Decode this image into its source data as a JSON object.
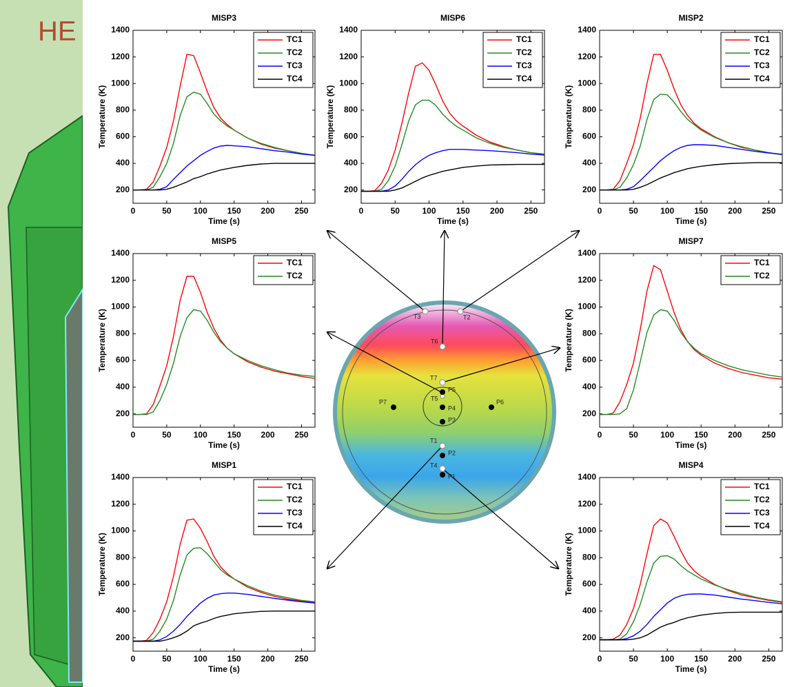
{
  "background_text": "HE",
  "diagram": {
    "points": [
      "T3",
      "T2",
      "T6",
      "T7",
      "T5",
      "P5",
      "P4",
      "P3",
      "P7",
      "P6",
      "T1",
      "P2",
      "T4",
      "P1"
    ]
  },
  "chart_data": [
    {
      "type": "line",
      "title": "MISP3",
      "xlabel": "Time (s)",
      "ylabel": "Temperature (K)",
      "x": [
        0,
        10,
        20,
        30,
        40,
        50,
        60,
        70,
        80,
        90,
        100,
        110,
        120,
        130,
        140,
        150,
        170,
        190,
        210,
        230,
        250,
        270
      ],
      "xlim": [
        0,
        270
      ],
      "xticks": [
        0,
        50,
        100,
        150,
        200,
        250
      ],
      "ylim": [
        100,
        1400
      ],
      "yticks": [
        200,
        400,
        600,
        800,
        1000,
        1200,
        1400
      ],
      "series": [
        {
          "name": "TC1",
          "color": "#ff0000",
          "values": [
            200,
            200,
            205,
            260,
            380,
            520,
            720,
            980,
            1220,
            1210,
            1080,
            940,
            820,
            740,
            690,
            650,
            590,
            545,
            515,
            495,
            475,
            460
          ]
        },
        {
          "name": "TC2",
          "color": "#228b22",
          "values": [
            200,
            200,
            200,
            220,
            300,
            400,
            550,
            760,
            900,
            935,
            920,
            850,
            770,
            720,
            680,
            650,
            590,
            550,
            520,
            495,
            475,
            460
          ]
        },
        {
          "name": "TC3",
          "color": "#0000ff",
          "values": [
            200,
            200,
            200,
            200,
            205,
            225,
            280,
            330,
            380,
            420,
            460,
            490,
            515,
            530,
            535,
            532,
            525,
            510,
            495,
            485,
            470,
            460
          ]
        },
        {
          "name": "TC4",
          "color": "#000000",
          "values": [
            200,
            200,
            200,
            200,
            200,
            205,
            220,
            240,
            260,
            285,
            300,
            320,
            335,
            350,
            360,
            370,
            385,
            395,
            400,
            400,
            400,
            400
          ]
        }
      ]
    },
    {
      "type": "line",
      "title": "MISP6",
      "xlabel": "Time (s)",
      "ylabel": "Temperature (K)",
      "x": [
        0,
        10,
        20,
        30,
        40,
        50,
        60,
        70,
        80,
        90,
        100,
        110,
        120,
        130,
        140,
        150,
        170,
        190,
        210,
        230,
        250,
        270
      ],
      "xlim": [
        0,
        270
      ],
      "xticks": [
        0,
        50,
        100,
        150,
        200,
        250
      ],
      "ylim": [
        100,
        1400
      ],
      "yticks": [
        200,
        400,
        600,
        800,
        1000,
        1200,
        1400
      ],
      "series": [
        {
          "name": "TC1",
          "color": "#ff0000",
          "values": [
            190,
            190,
            195,
            250,
            350,
            500,
            700,
            930,
            1130,
            1155,
            1100,
            990,
            870,
            780,
            720,
            680,
            610,
            560,
            525,
            500,
            480,
            465
          ]
        },
        {
          "name": "TC2",
          "color": "#228b22",
          "values": [
            190,
            190,
            190,
            205,
            270,
            380,
            540,
            720,
            840,
            875,
            875,
            835,
            770,
            720,
            680,
            650,
            590,
            550,
            520,
            500,
            480,
            470
          ]
        },
        {
          "name": "TC3",
          "color": "#0000ff",
          "values": [
            190,
            190,
            190,
            190,
            200,
            230,
            280,
            340,
            390,
            430,
            460,
            480,
            495,
            505,
            505,
            505,
            500,
            495,
            488,
            480,
            470,
            462
          ]
        },
        {
          "name": "TC4",
          "color": "#000000",
          "values": [
            190,
            190,
            190,
            190,
            190,
            200,
            215,
            240,
            265,
            290,
            310,
            325,
            340,
            350,
            360,
            370,
            380,
            388,
            390,
            392,
            392,
            392
          ]
        }
      ]
    },
    {
      "type": "line",
      "title": "MISP2",
      "xlabel": "Time (s)",
      "ylabel": "Temperature (K)",
      "x": [
        0,
        10,
        20,
        30,
        40,
        50,
        60,
        70,
        80,
        90,
        100,
        110,
        120,
        130,
        140,
        150,
        170,
        190,
        210,
        230,
        250,
        270
      ],
      "xlim": [
        0,
        270
      ],
      "xticks": [
        0,
        50,
        100,
        150,
        200,
        250
      ],
      "ylim": [
        100,
        1400
      ],
      "yticks": [
        200,
        400,
        600,
        800,
        1000,
        1200,
        1400
      ],
      "series": [
        {
          "name": "TC1",
          "color": "#ff0000",
          "values": [
            200,
            200,
            205,
            270,
            400,
            540,
            740,
            1000,
            1220,
            1220,
            1100,
            960,
            840,
            760,
            700,
            660,
            600,
            555,
            520,
            500,
            480,
            465
          ]
        },
        {
          "name": "TC2",
          "color": "#228b22",
          "values": [
            200,
            200,
            200,
            220,
            290,
            390,
            530,
            730,
            880,
            920,
            915,
            860,
            790,
            730,
            690,
            650,
            595,
            555,
            525,
            500,
            480,
            465
          ]
        },
        {
          "name": "TC3",
          "color": "#0000ff",
          "values": [
            200,
            200,
            200,
            200,
            205,
            225,
            270,
            320,
            370,
            420,
            460,
            495,
            520,
            535,
            540,
            540,
            535,
            520,
            505,
            490,
            478,
            468
          ]
        },
        {
          "name": "TC4",
          "color": "#000000",
          "values": [
            200,
            200,
            200,
            200,
            200,
            205,
            220,
            240,
            265,
            290,
            310,
            330,
            345,
            360,
            370,
            378,
            390,
            398,
            402,
            405,
            405,
            405
          ]
        }
      ]
    },
    {
      "type": "line",
      "title": "MISP5",
      "xlabel": "Time (s)",
      "ylabel": "Temperature (K)",
      "x": [
        0,
        10,
        20,
        30,
        40,
        50,
        60,
        70,
        80,
        90,
        100,
        110,
        120,
        130,
        140,
        150,
        170,
        190,
        210,
        230,
        250,
        270
      ],
      "xlim": [
        0,
        270
      ],
      "xticks": [
        0,
        50,
        100,
        150,
        200,
        250
      ],
      "ylim": [
        100,
        1400
      ],
      "yticks": [
        200,
        400,
        600,
        800,
        1000,
        1200,
        1400
      ],
      "series": [
        {
          "name": "TC1",
          "color": "#ff0000",
          "values": [
            195,
            195,
            200,
            270,
            410,
            560,
            780,
            1050,
            1230,
            1230,
            1110,
            960,
            840,
            750,
            690,
            650,
            590,
            550,
            520,
            500,
            480,
            465
          ]
        },
        {
          "name": "TC2",
          "color": "#228b22",
          "values": [
            195,
            195,
            195,
            215,
            300,
            420,
            580,
            780,
            920,
            980,
            970,
            900,
            810,
            740,
            690,
            650,
            600,
            560,
            530,
            505,
            490,
            480
          ]
        }
      ]
    },
    {
      "type": "line",
      "title": "MISP7",
      "xlabel": "Time (s)",
      "ylabel": "Temperature (K)",
      "x": [
        0,
        10,
        20,
        30,
        40,
        50,
        60,
        70,
        80,
        90,
        100,
        110,
        120,
        130,
        140,
        150,
        170,
        190,
        210,
        230,
        250,
        270
      ],
      "xlim": [
        0,
        270
      ],
      "xticks": [
        0,
        50,
        100,
        150,
        200,
        250
      ],
      "ylim": [
        100,
        1400
      ],
      "yticks": [
        200,
        400,
        600,
        800,
        1000,
        1200,
        1400
      ],
      "series": [
        {
          "name": "TC1",
          "color": "#ff0000",
          "values": [
            195,
            195,
            205,
            290,
            420,
            580,
            830,
            1120,
            1310,
            1280,
            1120,
            960,
            830,
            740,
            680,
            640,
            580,
            540,
            510,
            490,
            470,
            460
          ]
        },
        {
          "name": "TC2",
          "color": "#228b22",
          "values": [
            195,
            195,
            195,
            200,
            240,
            380,
            590,
            810,
            940,
            980,
            970,
            900,
            810,
            740,
            690,
            650,
            600,
            560,
            530,
            510,
            490,
            475
          ]
        }
      ]
    },
    {
      "type": "line",
      "title": "MISP1",
      "xlabel": "Time (s)",
      "ylabel": "Temperature (K)",
      "x": [
        0,
        10,
        20,
        30,
        40,
        50,
        60,
        70,
        80,
        90,
        100,
        110,
        120,
        130,
        140,
        150,
        170,
        190,
        210,
        230,
        250,
        270
      ],
      "xlim": [
        0,
        270
      ],
      "xticks": [
        0,
        50,
        100,
        150,
        200,
        250
      ],
      "ylim": [
        100,
        1400
      ],
      "yticks": [
        200,
        400,
        600,
        800,
        1000,
        1200,
        1400
      ],
      "series": [
        {
          "name": "TC1",
          "color": "#ff0000",
          "values": [
            175,
            175,
            180,
            240,
            340,
            470,
            660,
            900,
            1080,
            1090,
            1020,
            920,
            810,
            730,
            680,
            640,
            580,
            540,
            510,
            490,
            475,
            465
          ]
        },
        {
          "name": "TC2",
          "color": "#228b22",
          "values": [
            175,
            175,
            175,
            190,
            250,
            340,
            480,
            670,
            820,
            870,
            875,
            830,
            770,
            710,
            670,
            640,
            590,
            550,
            520,
            500,
            480,
            470
          ]
        },
        {
          "name": "TC3",
          "color": "#0000ff",
          "values": [
            175,
            175,
            175,
            175,
            185,
            210,
            250,
            300,
            360,
            410,
            460,
            495,
            520,
            530,
            535,
            535,
            525,
            510,
            495,
            482,
            470,
            460
          ]
        },
        {
          "name": "TC4",
          "color": "#000000",
          "values": [
            175,
            175,
            175,
            175,
            175,
            185,
            200,
            220,
            250,
            290,
            310,
            325,
            345,
            360,
            370,
            380,
            390,
            398,
            400,
            400,
            400,
            400
          ]
        }
      ]
    },
    {
      "type": "line",
      "title": "MISP4",
      "xlabel": "Time (s)",
      "ylabel": "Temperature (K)",
      "x": [
        0,
        10,
        20,
        30,
        40,
        50,
        60,
        70,
        80,
        90,
        100,
        110,
        120,
        130,
        140,
        150,
        170,
        190,
        210,
        230,
        250,
        270
      ],
      "xlim": [
        0,
        270
      ],
      "xticks": [
        0,
        50,
        100,
        150,
        200,
        250
      ],
      "ylim": [
        100,
        1400
      ],
      "yticks": [
        200,
        400,
        600,
        800,
        1000,
        1200,
        1400
      ],
      "series": [
        {
          "name": "TC1",
          "color": "#ff0000",
          "values": [
            185,
            185,
            190,
            220,
            300,
            420,
            600,
            830,
            1040,
            1090,
            1060,
            960,
            850,
            760,
            700,
            660,
            600,
            555,
            520,
            500,
            480,
            465
          ]
        },
        {
          "name": "TC2",
          "color": "#228b22",
          "values": [
            185,
            185,
            185,
            190,
            230,
            320,
            450,
            620,
            760,
            810,
            815,
            790,
            740,
            700,
            670,
            640,
            595,
            560,
            530,
            505,
            485,
            470
          ]
        },
        {
          "name": "TC3",
          "color": "#0000ff",
          "values": [
            185,
            185,
            185,
            185,
            195,
            215,
            250,
            300,
            360,
            410,
            460,
            495,
            515,
            525,
            528,
            528,
            520,
            505,
            490,
            478,
            465,
            455
          ]
        },
        {
          "name": "TC4",
          "color": "#000000",
          "values": [
            185,
            185,
            185,
            185,
            185,
            190,
            200,
            220,
            250,
            280,
            300,
            315,
            335,
            350,
            360,
            370,
            382,
            390,
            392,
            392,
            392,
            392
          ]
        }
      ]
    }
  ]
}
